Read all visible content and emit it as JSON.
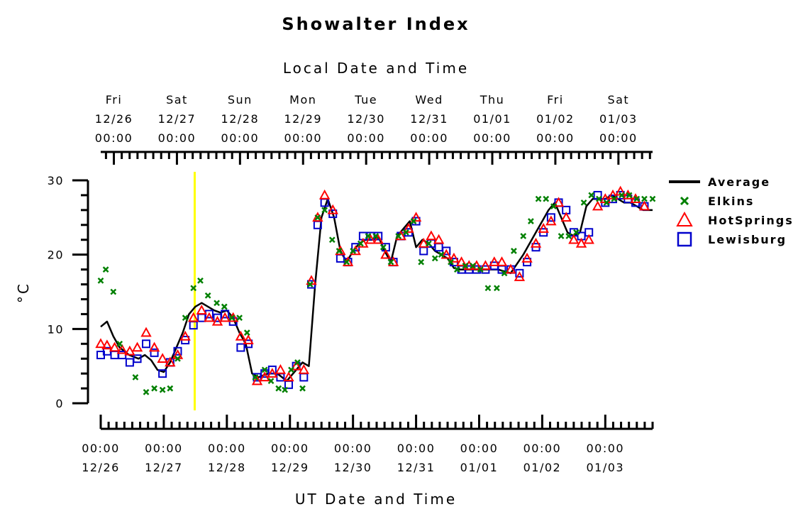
{
  "chart_data": {
    "type": "scatter",
    "title": "Showalter Index",
    "top_axis_title": "Local Date and Time",
    "bottom_axis_title": "UT Date and Time",
    "ylabel": "°C",
    "ylim": [
      0,
      30
    ],
    "y_ticks": [
      0,
      10,
      20,
      30
    ],
    "xlim": [
      0,
      8.75
    ],
    "top_axis_offset": 0.2083,
    "top_ticks": [
      {
        "day": "Fri",
        "date": "12/26",
        "time": "00:00"
      },
      {
        "day": "Sat",
        "date": "12/27",
        "time": "00:00"
      },
      {
        "day": "Sun",
        "date": "12/28",
        "time": "00:00"
      },
      {
        "day": "Mon",
        "date": "12/29",
        "time": "00:00"
      },
      {
        "day": "Tue",
        "date": "12/30",
        "time": "00:00"
      },
      {
        "day": "Wed",
        "date": "12/31",
        "time": "00:00"
      },
      {
        "day": "Thu",
        "date": "01/01",
        "time": "00:00"
      },
      {
        "day": "Fri",
        "date": "01/02",
        "time": "00:00"
      },
      {
        "day": "Sat",
        "date": "01/03",
        "time": "00:00"
      }
    ],
    "bottom_ticks": [
      {
        "time": "00:00",
        "date": "12/26"
      },
      {
        "time": "00:00",
        "date": "12/27"
      },
      {
        "time": "00:00",
        "date": "12/28"
      },
      {
        "time": "00:00",
        "date": "12/29"
      },
      {
        "time": "00:00",
        "date": "12/30"
      },
      {
        "time": "00:00",
        "date": "12/31"
      },
      {
        "time": "00:00",
        "date": "01/01"
      },
      {
        "time": "00:00",
        "date": "01/02"
      },
      {
        "time": "00:00",
        "date": "01/03"
      }
    ],
    "vertical_marker": {
      "x": 1.49,
      "color": "#ffff00"
    },
    "legend": {
      "position": "right",
      "entries": [
        {
          "label": "Average",
          "marker": "line",
          "color": "#000000"
        },
        {
          "label": "Elkins",
          "marker": "x",
          "color": "#008000"
        },
        {
          "label": "HotSprings",
          "marker": "triangle",
          "color": "#ff0000"
        },
        {
          "label": "Lewisburg",
          "marker": "square",
          "color": "#0000cc"
        }
      ]
    },
    "series": [
      {
        "name": "Average",
        "style": "line",
        "color": "#000000",
        "x": [
          0.0,
          0.1,
          0.2,
          0.3,
          0.45,
          0.6,
          0.7,
          0.8,
          0.9,
          1.0,
          1.1,
          1.2,
          1.3,
          1.4,
          1.5,
          1.6,
          1.7,
          1.8,
          1.9,
          2.0,
          2.1,
          2.2,
          2.3,
          2.4,
          2.5,
          2.65,
          2.8,
          2.95,
          3.1,
          3.2,
          3.3,
          3.4,
          3.5,
          3.6,
          3.7,
          3.8,
          3.9,
          4.0,
          4.1,
          4.2,
          4.3,
          4.4,
          4.5,
          4.6,
          4.7,
          4.8,
          4.9,
          5.0,
          5.1,
          5.2,
          5.3,
          5.4,
          5.5,
          5.6,
          5.7,
          5.8,
          5.9,
          6.0,
          6.1,
          6.3,
          6.5,
          6.7,
          6.9,
          7.0,
          7.1,
          7.2,
          7.3,
          7.4,
          7.5,
          7.6,
          7.7,
          7.8,
          7.9,
          8.0,
          8.1,
          8.2,
          8.3,
          8.4,
          8.5,
          8.6,
          8.75
        ],
        "y": [
          10.3,
          11.0,
          9.0,
          7.5,
          6.5,
          6.0,
          6.5,
          5.8,
          4.5,
          4.2,
          5.5,
          7.5,
          9.5,
          12.0,
          13.0,
          13.5,
          13.0,
          12.5,
          12.2,
          12.5,
          11.5,
          9.5,
          8.0,
          4.0,
          3.5,
          4.0,
          4.0,
          3.0,
          4.5,
          5.5,
          5.0,
          16.0,
          25.0,
          27.5,
          25.0,
          20.5,
          19.0,
          20.5,
          21.5,
          22.0,
          22.0,
          22.5,
          20.5,
          19.0,
          22.5,
          23.5,
          24.5,
          21.0,
          22.0,
          21.5,
          20.5,
          20.0,
          19.5,
          18.2,
          18.0,
          18.0,
          18.0,
          18.0,
          18.0,
          18.0,
          17.5,
          20.0,
          23.0,
          24.5,
          26.0,
          27.0,
          25.0,
          23.0,
          22.5,
          23.0,
          26.5,
          27.5,
          27.5,
          27.5,
          28.0,
          27.5,
          27.0,
          27.0,
          26.5,
          26.0,
          26.0
        ]
      },
      {
        "name": "Elkins",
        "style": "x",
        "color": "#008000",
        "x": [
          0.0,
          0.08,
          0.2,
          0.3,
          0.55,
          0.72,
          0.85,
          0.98,
          1.1,
          1.22,
          1.34,
          1.47,
          1.58,
          1.7,
          1.84,
          1.96,
          2.08,
          2.2,
          2.32,
          2.45,
          2.6,
          2.7,
          2.82,
          2.92,
          3.02,
          3.12,
          3.2,
          3.32,
          3.44,
          3.55,
          3.67,
          3.78,
          3.9,
          4.0,
          4.12,
          4.24,
          4.36,
          4.48,
          4.6,
          4.72,
          4.84,
          4.96,
          5.08,
          5.2,
          5.3,
          5.4,
          5.55,
          5.65,
          5.78,
          5.9,
          6.02,
          6.14,
          6.28,
          6.4,
          6.55,
          6.7,
          6.82,
          6.94,
          7.06,
          7.18,
          7.3,
          7.42,
          7.54,
          7.66,
          7.78,
          7.9,
          8.02,
          8.14,
          8.26,
          8.38,
          8.5,
          8.62,
          8.75
        ],
        "y": [
          16.5,
          18.0,
          15.0,
          8.0,
          3.5,
          1.5,
          2.0,
          1.8,
          2.0,
          6.0,
          11.5,
          15.5,
          16.5,
          14.5,
          13.5,
          13.0,
          11.5,
          11.5,
          9.5,
          3.5,
          4.5,
          3.0,
          2.0,
          1.8,
          4.5,
          5.5,
          2.0,
          16.0,
          25.0,
          26.0,
          22.0,
          20.5,
          19.0,
          20.5,
          21.5,
          22.5,
          22.5,
          21.0,
          19.0,
          22.5,
          23.0,
          24.5,
          19.0,
          21.5,
          19.5,
          20.0,
          19.0,
          18.0,
          18.5,
          18.5,
          18.0,
          15.5,
          15.5,
          17.5,
          20.5,
          22.5,
          24.5,
          27.5,
          27.5,
          26.5,
          22.5,
          22.5,
          23.0,
          27.0,
          28.0,
          27.5,
          27.0,
          27.5,
          28.0,
          28.0,
          27.5,
          27.5,
          27.5
        ]
      },
      {
        "name": "HotSprings",
        "style": "triangle",
        "color": "#ff0000",
        "x": [
          0.0,
          0.1,
          0.22,
          0.34,
          0.46,
          0.58,
          0.72,
          0.85,
          0.98,
          1.1,
          1.22,
          1.34,
          1.47,
          1.6,
          1.72,
          1.85,
          1.97,
          2.1,
          2.22,
          2.34,
          2.48,
          2.6,
          2.72,
          2.85,
          2.98,
          3.1,
          3.22,
          3.34,
          3.44,
          3.55,
          3.68,
          3.8,
          3.92,
          4.04,
          4.16,
          4.28,
          4.4,
          4.52,
          4.64,
          4.76,
          4.88,
          5.0,
          5.12,
          5.24,
          5.36,
          5.48,
          5.6,
          5.72,
          5.84,
          5.96,
          6.1,
          6.24,
          6.36,
          6.5,
          6.64,
          6.76,
          6.9,
          7.02,
          7.14,
          7.26,
          7.38,
          7.5,
          7.62,
          7.74,
          7.88,
          8.0,
          8.12,
          8.24,
          8.36,
          8.48,
          8.62
        ],
        "y": [
          8.0,
          7.8,
          7.5,
          7.2,
          7.0,
          7.5,
          9.5,
          7.5,
          6.0,
          5.5,
          6.5,
          9.0,
          11.5,
          12.5,
          11.5,
          11.0,
          11.5,
          11.5,
          9.0,
          8.5,
          3.0,
          3.5,
          4.0,
          4.5,
          3.5,
          5.0,
          4.5,
          16.5,
          25.0,
          28.0,
          26.0,
          20.5,
          19.0,
          20.5,
          21.5,
          22.0,
          22.0,
          20.0,
          19.0,
          22.5,
          23.5,
          25.0,
          21.5,
          22.5,
          22.0,
          20.0,
          19.5,
          19.0,
          18.5,
          18.5,
          18.5,
          19.0,
          19.0,
          18.0,
          17.0,
          19.5,
          21.5,
          23.5,
          24.5,
          27.0,
          25.0,
          22.0,
          21.5,
          22.0,
          26.5,
          27.5,
          28.0,
          28.5,
          28.0,
          27.5,
          26.5
        ]
      },
      {
        "name": "Lewisburg",
        "style": "square",
        "color": "#0000cc",
        "x": [
          0.0,
          0.1,
          0.22,
          0.34,
          0.46,
          0.58,
          0.72,
          0.85,
          0.98,
          1.1,
          1.22,
          1.34,
          1.47,
          1.6,
          1.72,
          1.85,
          1.97,
          2.1,
          2.22,
          2.34,
          2.48,
          2.6,
          2.72,
          2.85,
          2.98,
          3.1,
          3.22,
          3.34,
          3.44,
          3.55,
          3.68,
          3.8,
          3.92,
          4.04,
          4.16,
          4.28,
          4.4,
          4.52,
          4.64,
          4.76,
          4.88,
          5.0,
          5.12,
          5.24,
          5.36,
          5.48,
          5.6,
          5.72,
          5.84,
          5.96,
          6.1,
          6.24,
          6.36,
          6.5,
          6.64,
          6.76,
          6.9,
          7.02,
          7.14,
          7.26,
          7.38,
          7.5,
          7.62,
          7.74,
          7.88,
          8.0,
          8.12,
          8.24,
          8.36,
          8.48,
          8.62
        ],
        "y": [
          6.5,
          7.0,
          6.5,
          6.5,
          5.5,
          6.0,
          8.0,
          6.8,
          4.0,
          5.5,
          7.0,
          8.5,
          10.5,
          11.5,
          12.0,
          11.5,
          12.0,
          11.0,
          7.5,
          8.0,
          3.5,
          4.0,
          4.5,
          3.5,
          2.5,
          5.0,
          3.5,
          16.0,
          24.0,
          27.0,
          25.5,
          19.5,
          19.0,
          21.0,
          22.5,
          22.5,
          22.5,
          21.0,
          19.0,
          22.5,
          23.0,
          24.5,
          20.5,
          21.5,
          21.0,
          20.5,
          19.0,
          18.0,
          18.0,
          18.0,
          18.0,
          18.5,
          18.0,
          18.0,
          17.5,
          19.0,
          21.0,
          23.0,
          25.0,
          27.0,
          26.0,
          23.0,
          22.5,
          23.0,
          28.0,
          27.0,
          27.5,
          28.0,
          27.5,
          27.0,
          26.5
        ]
      }
    ]
  }
}
